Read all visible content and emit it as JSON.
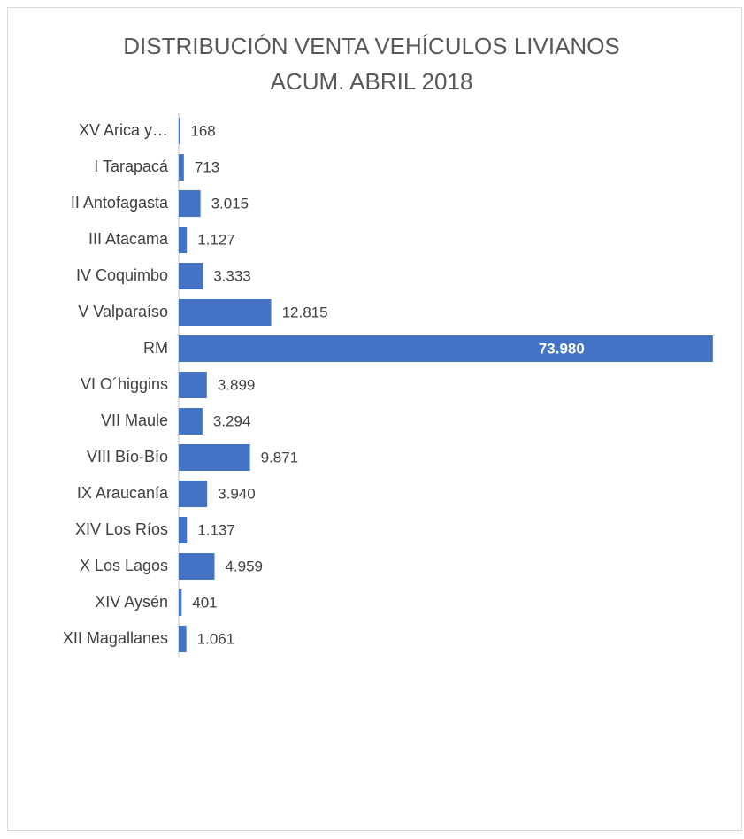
{
  "chart_data": {
    "type": "bar",
    "orientation": "horizontal",
    "title": "DISTRIBUCIÓN VENTA VEHÍCULOS LIVIANOS ACUM. ABRIL 2018",
    "categories": [
      "XV Arica y…",
      "I Tarapacá",
      "II Antofagasta",
      "III Atacama",
      "IV Coquimbo",
      "V Valparaíso",
      "RM",
      "VI O´higgins",
      "VII Maule",
      "VIII Bío-Bío",
      "IX Araucanía",
      "XIV Los Ríos",
      "X Los Lagos",
      "XIV Aysén",
      "XII Magallanes"
    ],
    "values": [
      168,
      713,
      3015,
      1127,
      3333,
      12815,
      73980,
      3899,
      3294,
      9871,
      3940,
      1137,
      4959,
      401,
      1061
    ],
    "value_labels": [
      "168",
      "713",
      "3.015",
      "1.127",
      "3.333",
      "12.815",
      "73.980",
      "3.899",
      "3.294",
      "9.871",
      "3.940",
      "1.137",
      "4.959",
      "401",
      "1.061"
    ],
    "color": "#4472c4",
    "xlim": [
      0,
      74000
    ]
  }
}
